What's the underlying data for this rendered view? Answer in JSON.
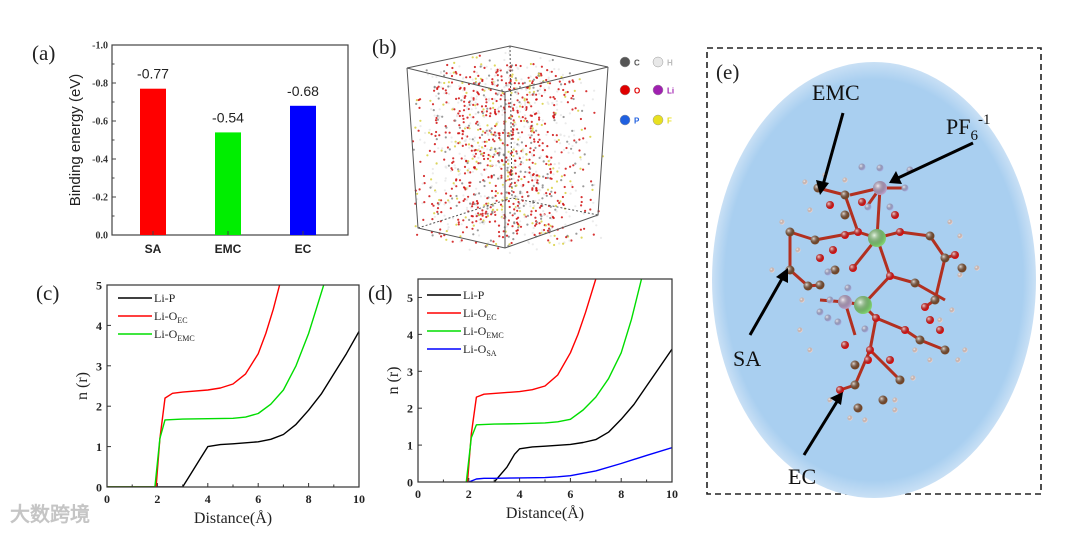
{
  "watermark": "大数跨境",
  "chart_data": [
    {
      "panel": "(a)",
      "type": "bar",
      "categories": [
        "SA",
        "EMC",
        "EC"
      ],
      "values": [
        -0.77,
        -0.54,
        -0.68
      ],
      "value_labels": [
        "-0.77",
        "-0.54",
        "-0.68"
      ],
      "colors": [
        "#ff0000",
        "#00ee00",
        "#0000ff"
      ],
      "xlabel": "",
      "ylabel": "Binding energy (eV)",
      "ylim": [
        0.0,
        -1.0
      ],
      "yticks": [
        "0.0",
        "-0.2",
        "-0.4",
        "-0.6",
        "-0.8",
        "-1.0"
      ],
      "ytick_values": [
        0,
        -0.2,
        -0.4,
        -0.6,
        -0.8,
        -1.0
      ]
    },
    {
      "panel": "(b)",
      "type": "other",
      "description_legend": [
        {
          "symbol": "C",
          "color": "#555555"
        },
        {
          "symbol": "H",
          "color": "#e8e8e8"
        },
        {
          "symbol": "O",
          "color": "#e00000"
        },
        {
          "symbol": "Li",
          "color": "#a020b0"
        },
        {
          "symbol": "P",
          "color": "#2060e0"
        },
        {
          "symbol": "F",
          "color": "#e8e020"
        }
      ]
    },
    {
      "panel": "(c)",
      "type": "line",
      "xlabel": "Distance(Å)",
      "ylabel": "n (r)",
      "xlim": [
        0,
        10
      ],
      "ylim": [
        0,
        5
      ],
      "xticks": [
        "0",
        "2",
        "4",
        "6",
        "8",
        "10"
      ],
      "xtick_values": [
        0,
        2,
        4,
        6,
        8,
        10
      ],
      "yticks": [
        "0",
        "1",
        "2",
        "3",
        "4",
        "5"
      ],
      "ytick_values": [
        0,
        1,
        2,
        3,
        4,
        5
      ],
      "legend_position": "top-left",
      "series": [
        {
          "name": "Li-P",
          "sub": "",
          "color": "#000000",
          "x": [
            0,
            3.0,
            3.3,
            3.7,
            4.0,
            4.5,
            5,
            6,
            6.5,
            7,
            7.5,
            8,
            8.5,
            9,
            9.5,
            10
          ],
          "y": [
            0,
            0,
            0.3,
            0.7,
            1.0,
            1.05,
            1.07,
            1.12,
            1.18,
            1.3,
            1.55,
            1.9,
            2.3,
            2.8,
            3.3,
            3.85
          ]
        },
        {
          "name": "Li-O",
          "sub": "EC",
          "color": "#ff0000",
          "x": [
            0,
            1.95,
            2.1,
            2.3,
            2.6,
            3,
            4,
            4.5,
            5,
            5.5,
            6,
            6.3,
            6.6,
            6.85
          ],
          "y": [
            0,
            0,
            1.2,
            2.2,
            2.32,
            2.35,
            2.4,
            2.45,
            2.55,
            2.8,
            3.3,
            3.8,
            4.4,
            5.0
          ]
        },
        {
          "name": "Li-O",
          "sub": "EMC",
          "color": "#00dd00",
          "x": [
            0,
            1.9,
            2.1,
            2.3,
            3,
            4,
            5,
            5.5,
            6,
            6.5,
            7,
            7.5,
            8,
            8.3,
            8.6
          ],
          "y": [
            0,
            0,
            1.2,
            1.66,
            1.68,
            1.69,
            1.7,
            1.73,
            1.82,
            2.05,
            2.4,
            3.0,
            3.8,
            4.4,
            5.0
          ]
        }
      ]
    },
    {
      "panel": "(d)",
      "type": "line",
      "xlabel": "Distance(Å)",
      "ylabel": "n (r)",
      "xlim": [
        0,
        10
      ],
      "ylim": [
        0,
        5.5
      ],
      "xticks": [
        "0",
        "2",
        "4",
        "6",
        "8",
        "10"
      ],
      "xtick_values": [
        0,
        2,
        4,
        6,
        8,
        10
      ],
      "yticks": [
        "0",
        "1",
        "2",
        "3",
        "4",
        "5"
      ],
      "ytick_values": [
        0,
        1,
        2,
        3,
        4,
        5
      ],
      "legend_position": "top-left",
      "series": [
        {
          "name": "Li-P",
          "sub": "",
          "color": "#000000",
          "x": [
            3.0,
            3.5,
            3.8,
            4.0,
            4.5,
            5,
            6,
            6.5,
            7,
            7.5,
            8,
            8.5,
            9,
            9.5,
            10
          ],
          "y": [
            0,
            0.4,
            0.75,
            0.9,
            0.95,
            0.97,
            1.02,
            1.07,
            1.15,
            1.35,
            1.7,
            2.1,
            2.6,
            3.1,
            3.6
          ]
        },
        {
          "name": "Li-O",
          "sub": "EC",
          "color": "#ff0000",
          "x": [
            1.95,
            2.1,
            2.3,
            2.6,
            3,
            4,
            4.5,
            5,
            5.5,
            6,
            6.3,
            6.6,
            7.0
          ],
          "y": [
            0,
            1.3,
            2.3,
            2.38,
            2.4,
            2.45,
            2.5,
            2.6,
            2.9,
            3.5,
            4.0,
            4.6,
            5.5
          ]
        },
        {
          "name": "Li-O",
          "sub": "EMC",
          "color": "#00dd00",
          "x": [
            1.9,
            2.1,
            2.3,
            3,
            4,
            5,
            5.5,
            6,
            6.5,
            7,
            7.5,
            8,
            8.4,
            8.8
          ],
          "y": [
            0,
            1.2,
            1.55,
            1.57,
            1.58,
            1.6,
            1.63,
            1.7,
            1.95,
            2.3,
            2.8,
            3.5,
            4.4,
            5.5
          ]
        },
        {
          "name": "Li-O",
          "sub": "SA",
          "color": "#0000ff",
          "x": [
            2.0,
            2.3,
            2.6,
            3,
            4,
            5,
            5.5,
            6,
            7,
            8,
            9,
            10
          ],
          "y": [
            0,
            0.08,
            0.1,
            0.1,
            0.11,
            0.12,
            0.14,
            0.17,
            0.3,
            0.5,
            0.72,
            0.93
          ]
        }
      ]
    },
    {
      "panel": "(e)",
      "type": "other",
      "labels": {
        "emc": "EMC",
        "pf6": "PF",
        "pf6_sub": "6",
        "pf6_sup": "-1",
        "sa": "SA",
        "ec": "EC"
      }
    }
  ]
}
